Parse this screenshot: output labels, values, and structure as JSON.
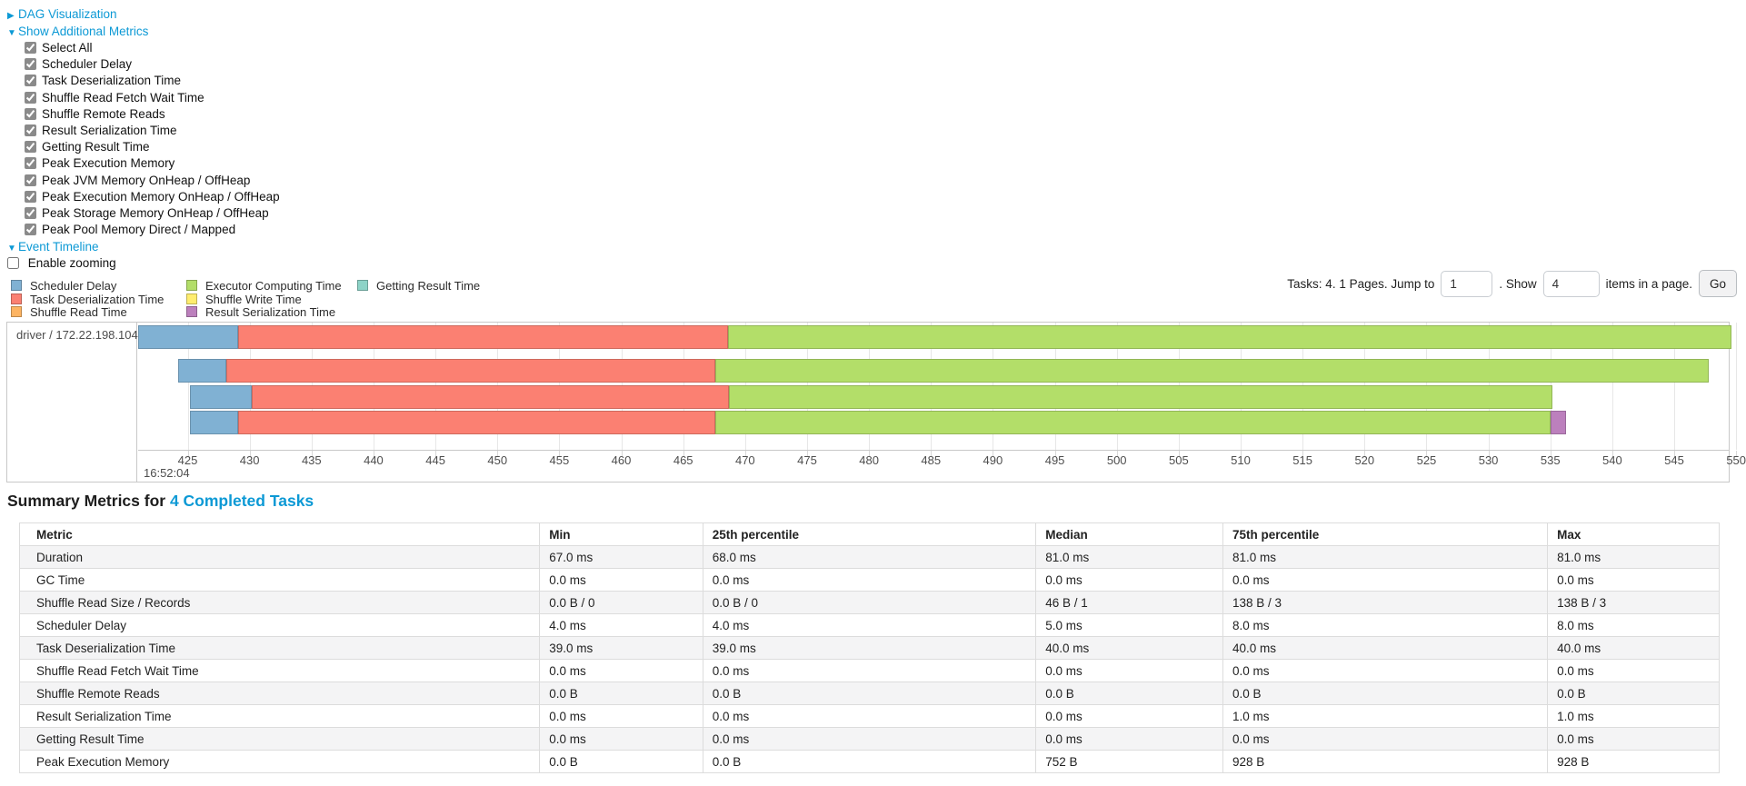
{
  "panel": {
    "dag": {
      "label": "DAG Visualization",
      "expanded": false
    },
    "additional_metrics": {
      "label": "Show Additional Metrics",
      "expanded": true
    },
    "event_timeline": {
      "label": "Event Timeline",
      "expanded": true
    },
    "metric_checkboxes": [
      {
        "label": "Select All",
        "checked": true
      },
      {
        "label": "Scheduler Delay",
        "checked": true
      },
      {
        "label": "Task Deserialization Time",
        "checked": true
      },
      {
        "label": "Shuffle Read Fetch Wait Time",
        "checked": true
      },
      {
        "label": "Shuffle Remote Reads",
        "checked": true
      },
      {
        "label": "Result Serialization Time",
        "checked": true
      },
      {
        "label": "Getting Result Time",
        "checked": true
      },
      {
        "label": "Peak Execution Memory",
        "checked": true
      },
      {
        "label": "Peak JVM Memory OnHeap / OffHeap",
        "checked": true
      },
      {
        "label": "Peak Execution Memory OnHeap / OffHeap",
        "checked": true
      },
      {
        "label": "Peak Storage Memory OnHeap / OffHeap",
        "checked": true
      },
      {
        "label": "Peak Pool Memory Direct / Mapped",
        "checked": true
      }
    ],
    "enable_zooming": {
      "label": "Enable zooming",
      "checked": false
    }
  },
  "legend": {
    "columns": [
      [
        {
          "label": "Scheduler Delay",
          "color": "#80B1D3"
        },
        {
          "label": "Task Deserialization Time",
          "color": "#FB8072"
        },
        {
          "label": "Shuffle Read Time",
          "color": "#FDB462"
        }
      ],
      [
        {
          "label": "Executor Computing Time",
          "color": "#B3DE69"
        },
        {
          "label": "Shuffle Write Time",
          "color": "#FFED6F"
        },
        {
          "label": "Result Serialization Time",
          "color": "#BC80BD"
        }
      ],
      [
        {
          "label": "Getting Result Time",
          "color": "#8DD3C7"
        }
      ]
    ]
  },
  "pagination": {
    "tasks_text": "Tasks: 4. 1 Pages. Jump to",
    "jump_value": "1",
    "show_text": ". Show",
    "items_value": "4",
    "items_text": "items in a page.",
    "go_label": "Go"
  },
  "chart_data": {
    "type": "timeline",
    "executor_label": "driver / 172.22.198.104",
    "x_domain": [
      421.0,
      549.4
    ],
    "x_unit": "milliseconds within second 16:52:04",
    "major_tick_label": "16:52:04",
    "ticks": [
      425,
      430,
      435,
      440,
      445,
      450,
      455,
      460,
      465,
      470,
      475,
      480,
      485,
      490,
      495,
      500,
      505,
      510,
      515,
      520,
      525,
      530,
      535,
      540,
      545,
      550
    ],
    "colors": {
      "scheduler_delay": "#80B1D3",
      "task_deserialization": "#FB8072",
      "shuffle_read": "#FDB462",
      "executor_computing": "#B3DE69",
      "shuffle_write": "#FFED6F",
      "result_serialization": "#BC80BD",
      "getting_result": "#8DD3C7"
    },
    "tasks": [
      {
        "segments": [
          {
            "name": "scheduler_delay",
            "start": 421.0,
            "end": 429.1
          },
          {
            "name": "task_deserialization",
            "start": 429.1,
            "end": 468.6
          },
          {
            "name": "executor_computing",
            "start": 468.6,
            "end": 549.6
          }
        ]
      },
      {
        "segments": [
          {
            "name": "scheduler_delay",
            "start": 424.2,
            "end": 428.1
          },
          {
            "name": "task_deserialization",
            "start": 428.1,
            "end": 467.6
          },
          {
            "name": "executor_computing",
            "start": 467.6,
            "end": 547.8
          }
        ]
      },
      {
        "segments": [
          {
            "name": "scheduler_delay",
            "start": 425.2,
            "end": 430.2
          },
          {
            "name": "task_deserialization",
            "start": 430.2,
            "end": 468.7
          },
          {
            "name": "executor_computing",
            "start": 468.7,
            "end": 535.2
          }
        ]
      },
      {
        "segments": [
          {
            "name": "scheduler_delay",
            "start": 425.2,
            "end": 429.1
          },
          {
            "name": "task_deserialization",
            "start": 429.1,
            "end": 467.6
          },
          {
            "name": "executor_computing",
            "start": 467.6,
            "end": 535.0
          },
          {
            "name": "result_serialization",
            "start": 535.0,
            "end": 536.3
          }
        ]
      }
    ]
  },
  "summary": {
    "title_prefix": "Summary Metrics for ",
    "title_link": "4 Completed Tasks",
    "columns": [
      "Metric",
      "Min",
      "25th percentile",
      "Median",
      "75th percentile",
      "Max"
    ],
    "rows": [
      [
        "Duration",
        "67.0 ms",
        "68.0 ms",
        "81.0 ms",
        "81.0 ms",
        "81.0 ms"
      ],
      [
        "GC Time",
        "0.0 ms",
        "0.0 ms",
        "0.0 ms",
        "0.0 ms",
        "0.0 ms"
      ],
      [
        "Shuffle Read Size / Records",
        "0.0 B / 0",
        "0.0 B / 0",
        "46 B / 1",
        "138 B / 3",
        "138 B / 3"
      ],
      [
        "Scheduler Delay",
        "4.0 ms",
        "4.0 ms",
        "5.0 ms",
        "8.0 ms",
        "8.0 ms"
      ],
      [
        "Task Deserialization Time",
        "39.0 ms",
        "39.0 ms",
        "40.0 ms",
        "40.0 ms",
        "40.0 ms"
      ],
      [
        "Shuffle Read Fetch Wait Time",
        "0.0 ms",
        "0.0 ms",
        "0.0 ms",
        "0.0 ms",
        "0.0 ms"
      ],
      [
        "Shuffle Remote Reads",
        "0.0 B",
        "0.0 B",
        "0.0 B",
        "0.0 B",
        "0.0 B"
      ],
      [
        "Result Serialization Time",
        "0.0 ms",
        "0.0 ms",
        "0.0 ms",
        "1.0 ms",
        "1.0 ms"
      ],
      [
        "Getting Result Time",
        "0.0 ms",
        "0.0 ms",
        "0.0 ms",
        "0.0 ms",
        "0.0 ms"
      ],
      [
        "Peak Execution Memory",
        "0.0 B",
        "0.0 B",
        "752 B",
        "928 B",
        "928 B"
      ]
    ]
  }
}
